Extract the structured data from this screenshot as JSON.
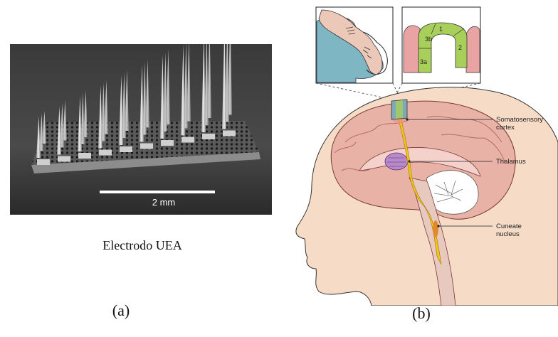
{
  "panel_a": {
    "scale_bar_label": "2 mm",
    "caption": "Electrodo UEA",
    "panel_label": "(a)"
  },
  "panel_b": {
    "panel_label": "(b)",
    "callouts": {
      "somatosensory_cortex_line1": "Somatosensory",
      "somatosensory_cortex_line2": "cortex",
      "thalamus": "Thalamus",
      "cuneate_nucleus_line1": "Cuneate",
      "cuneate_nucleus_line2": "nucleus"
    },
    "inset_region_labels": [
      "3b",
      "1",
      "2",
      "3a"
    ]
  },
  "colors": {
    "cortex_green": "#a8cf5a",
    "cortex_pink": "#e9a3a3",
    "brain_teal": "#7fb6c4",
    "pathway_yellow": "#f2c21a",
    "thalamus_purple": "#b98ac9",
    "skin": "#f6dcc7"
  }
}
